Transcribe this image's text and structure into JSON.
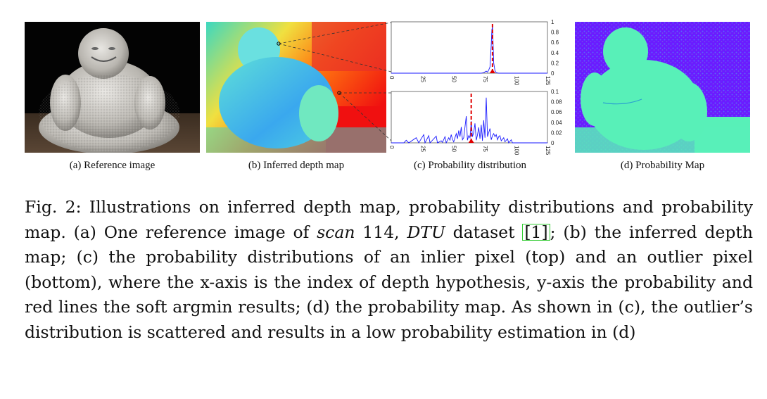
{
  "subfigures": {
    "a": {
      "caption": "(a) Reference image"
    },
    "b": {
      "caption": "(b) Inferred depth map"
    },
    "c": {
      "caption": "(c) Probability distribution"
    },
    "d": {
      "caption": "(d) Probability Map"
    }
  },
  "colors": {
    "red_line": "#e00000",
    "distribution_line": "#1a1aff",
    "confidence_high": "#58f0b8",
    "confidence_low": "#6a1dff"
  },
  "chart_data": [
    {
      "type": "line",
      "name": "inlier-distribution",
      "xlim": [
        0,
        125
      ],
      "ylim": [
        0,
        1
      ],
      "x_ticks": [
        "0",
        "25",
        "50",
        "75",
        "100",
        "125"
      ],
      "y_ticks": [
        "0",
        "0.2",
        "0.4",
        "0.6",
        "0.8",
        "1"
      ],
      "argmin_x": 81,
      "series": [
        {
          "name": "probability",
          "points": [
            [
              0,
              0
            ],
            [
              72,
              0
            ],
            [
              74,
              0.01
            ],
            [
              76,
              0.04
            ],
            [
              77,
              0.02
            ],
            [
              78,
              0.06
            ],
            [
              79,
              0.12
            ],
            [
              80,
              0.55
            ],
            [
              80.5,
              0.85
            ],
            [
              81,
              0.9
            ],
            [
              81.5,
              0.6
            ],
            [
              82,
              0.2
            ],
            [
              83,
              0.05
            ],
            [
              84,
              0.01
            ],
            [
              86,
              0
            ],
            [
              125,
              0
            ]
          ]
        }
      ]
    },
    {
      "type": "line",
      "name": "outlier-distribution",
      "xlim": [
        0,
        125
      ],
      "ylim": [
        0,
        0.1
      ],
      "x_ticks": [
        "0",
        "25",
        "50",
        "75",
        "100",
        "125"
      ],
      "y_ticks": [
        "0",
        "0.02",
        "0.04",
        "0.06",
        "0.08",
        "0.1"
      ],
      "argmin_x": 64,
      "series": [
        {
          "name": "probability",
          "points": [
            [
              0,
              0
            ],
            [
              10,
              0
            ],
            [
              12,
              0.005
            ],
            [
              14,
              0
            ],
            [
              20,
              0.01
            ],
            [
              22,
              0
            ],
            [
              26,
              0.016
            ],
            [
              27,
              0
            ],
            [
              30,
              0.014
            ],
            [
              31,
              0
            ],
            [
              36,
              0.013
            ],
            [
              37,
              0
            ],
            [
              40,
              0.004
            ],
            [
              41,
              0.001
            ],
            [
              43,
              0.012
            ],
            [
              44,
              0
            ],
            [
              46,
              0.01
            ],
            [
              47,
              0.005
            ],
            [
              48,
              0.016
            ],
            [
              49,
              0.007
            ],
            [
              50,
              0.002
            ],
            [
              52,
              0.018
            ],
            [
              53,
              0.008
            ],
            [
              54,
              0.024
            ],
            [
              55,
              0.012
            ],
            [
              56,
              0.031
            ],
            [
              57,
              0.006
            ],
            [
              58,
              0.01
            ],
            [
              60,
              0.052
            ],
            [
              61,
              0.005
            ],
            [
              62,
              0.014
            ],
            [
              63,
              0.01
            ],
            [
              64,
              0.042
            ],
            [
              65,
              0.012
            ],
            [
              66,
              0.02
            ],
            [
              67,
              0.038
            ],
            [
              68,
              0.005
            ],
            [
              69,
              0.015
            ],
            [
              70,
              0.03
            ],
            [
              71,
              0.008
            ],
            [
              72,
              0.035
            ],
            [
              73,
              0.004
            ],
            [
              74,
              0.044
            ],
            [
              75,
              0.01
            ],
            [
              76,
              0.088
            ],
            [
              77,
              0.012
            ],
            [
              78,
              0.02
            ],
            [
              79,
              0.028
            ],
            [
              80,
              0.006
            ],
            [
              81,
              0.014
            ],
            [
              82,
              0.018
            ],
            [
              83,
              0.012
            ],
            [
              84,
              0.016
            ],
            [
              85,
              0.006
            ],
            [
              86,
              0.012
            ],
            [
              87,
              0.014
            ],
            [
              88,
              0.004
            ],
            [
              90,
              0.01
            ],
            [
              91,
              0.002
            ],
            [
              93,
              0.008
            ],
            [
              94,
              0
            ],
            [
              96,
              0.006
            ],
            [
              97,
              0
            ],
            [
              125,
              0
            ]
          ]
        }
      ]
    }
  ],
  "caption": {
    "fig_label": "Fig. 2:",
    "text_1": " Illustrations on inferred depth map, probability distributions and probability map. (a) One reference image of ",
    "scan_word": "scan",
    "text_2": " 114, ",
    "dtu_word": "DTU",
    "text_3": " dataset ",
    "citation": "1",
    "text_4": "; (b) the inferred depth map; (c) the probability distributions of an inlier pixel (top) and an outlier pixel (bottom), where the x-axis is the index of depth hypothesis, y-axis the probability and red lines the soft argmin results; (d) the probability map. As shown in (c), the outlier’s distribution is scattered and results in a low probability estimation in (d)"
  }
}
